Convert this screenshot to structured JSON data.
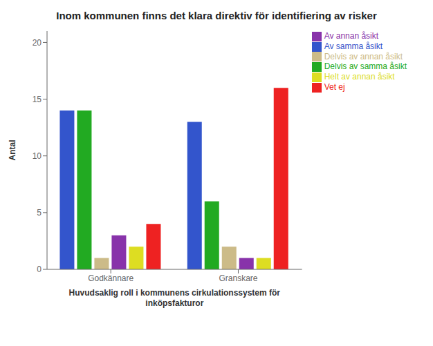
{
  "chart_data": {
    "type": "bar",
    "title": "Inom kommunen finns det klara direktiv för identifiering av risker",
    "xlabel": "Huvudsaklig roll i kommunens cirkulationssystem för\ninköpsfakturor",
    "ylabel": "Antal",
    "categories": [
      "Godkännare",
      "Granskare"
    ],
    "series": [
      {
        "name": "Av samma åsikt",
        "color": "#3355cc",
        "values": [
          14,
          13
        ]
      },
      {
        "name": "Delvis av samma åsikt",
        "color": "#22aa22",
        "values": [
          14,
          6
        ]
      },
      {
        "name": "Delvis av annan åsikt",
        "color": "#ccbb88",
        "values": [
          1,
          2
        ]
      },
      {
        "name": "Av annan åsikt",
        "color": "#8833aa",
        "values": [
          3,
          1
        ]
      },
      {
        "name": "Helt av annan åsikt",
        "color": "#dddd22",
        "values": [
          2,
          1
        ]
      },
      {
        "name": "Vet ej",
        "color": "#ee2222",
        "values": [
          4,
          16
        ]
      }
    ],
    "ylim": [
      0,
      21
    ],
    "yticks": [
      0,
      5,
      10,
      15,
      20
    ],
    "grid": false,
    "legend": "right"
  }
}
